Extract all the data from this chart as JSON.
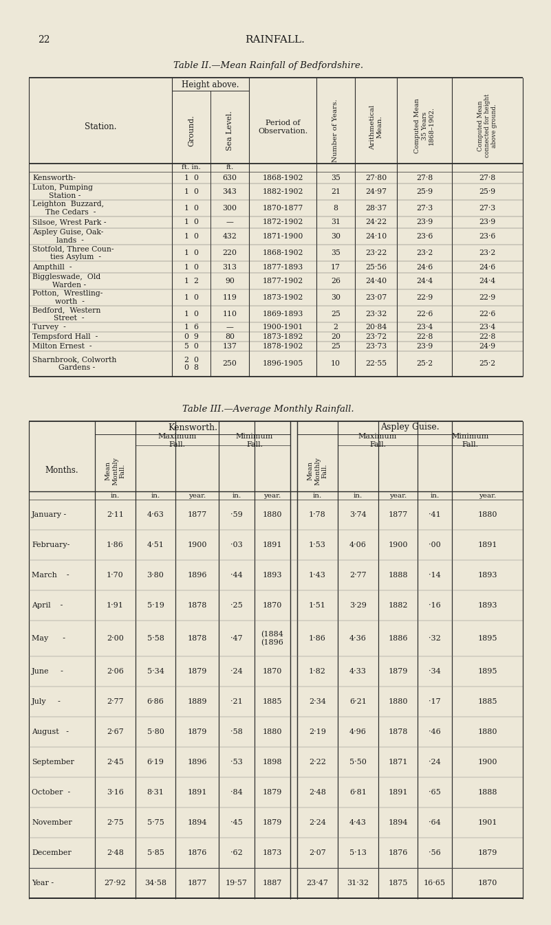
{
  "page_number": "22",
  "page_header": "RAINFALL.",
  "bg_color": "#ede8d8",
  "text_color": "#1a1a1a",
  "table2_title": "Table II.—Mean Rainfall of Bedfordshire.",
  "table3_title": "Table III.—Average Monthly Rainfall.",
  "station_names": [
    "Kensworth-",
    "Luton, Pumping\n  Station -",
    "Leighton  Buzzard,\n  The Cedars  -",
    "Silsoe, Wrest Park -",
    "Aspley Guise, Oak-\n  lands  -",
    "Stotfold, Three Coun-\n  ties Asylum  -",
    "Ampthill  -",
    "Biggleswade,  Old\n  Warden -",
    "Potton,  Wrestling-\n  worth  -",
    "Bedford,  Western\n  Street  -",
    "Turvey  -",
    "Tempsford Hall  -",
    "Milton Ernest  -",
    "Sharnbrook, Colworth\n  Gardens -"
  ],
  "ground_vals": [
    "1  0",
    "1  0",
    "1  0",
    "1  0",
    "1  0",
    "1  0",
    "1  0",
    "1  2",
    "1  0",
    "1  0",
    "1  6",
    "0  9",
    "5  0",
    "2  0\n0  8"
  ],
  "sea_vals": [
    "630",
    "343",
    "300",
    "—",
    "432",
    "220",
    "313",
    "90",
    "119",
    "110",
    "—",
    "80",
    "137",
    "250"
  ],
  "period_vals": [
    "1868-1902",
    "1882-1902",
    "1870-1877",
    "1872-1902",
    "1871-1900",
    "1868-1902",
    "1877-1893",
    "1877-1902",
    "1873-1902",
    "1869-1893",
    "1900-1901",
    "1873-1892",
    "1878-1902",
    "1896-1905"
  ],
  "num_vals": [
    "35",
    "21",
    "8",
    "31",
    "30",
    "35",
    "17",
    "26",
    "30",
    "25",
    "2",
    "20",
    "25",
    "10"
  ],
  "arith_vals": [
    "27·80",
    "24·97",
    "28·37",
    "24·22",
    "24·10",
    "23·22",
    "25·56",
    "24·40",
    "23·07",
    "23·32",
    "20·84",
    "23·72",
    "23·73",
    "22·55"
  ],
  "comp_vals": [
    "27·8",
    "25·9",
    "27·3",
    "23·9",
    "23·6",
    "23·2",
    "24·6",
    "24·4",
    "22·9",
    "22·6",
    "23·4",
    "22·8",
    "23·9",
    "25·2"
  ],
  "conn_vals": [
    "27·8",
    "25·9",
    "27·3",
    "23·9",
    "23·6",
    "23·2",
    "24·6",
    "24·4",
    "22·9",
    "22·6",
    "23·4",
    "22·8",
    "24·9",
    "25·2"
  ],
  "months": [
    "January -",
    "February-",
    "March    -",
    "April    -",
    "May      -",
    "June     -",
    "July     -",
    "August   -",
    "September",
    "October  -",
    "November",
    "December",
    "Year -"
  ],
  "kens_mean": [
    "2·11",
    "1·86",
    "1·70",
    "1·91",
    "2·00",
    "2·06",
    "2·77",
    "2·67",
    "2·45",
    "3·16",
    "2·75",
    "2·48",
    "27·92"
  ],
  "kens_maxf": [
    "4·63",
    "4·51",
    "3·80",
    "5·19",
    "5·58",
    "5·34",
    "6·86",
    "5·80",
    "6·19",
    "8·31",
    "5·75",
    "5·85",
    "34·58"
  ],
  "kens_maxy": [
    "1877",
    "1900",
    "1896",
    "1878",
    "1878",
    "1879",
    "1889",
    "1879",
    "1896",
    "1891",
    "1894",
    "1876",
    "1877"
  ],
  "kens_minf": [
    "·59",
    "·03",
    "·44",
    "·25",
    "·47",
    "·24",
    "·21",
    "·58",
    "·53",
    "·84",
    "·45",
    "·62",
    "19·57"
  ],
  "kens_miny": [
    "1880",
    "1891",
    "1893",
    "1870",
    "(1884\n(1896",
    "1870",
    "1885",
    "1880",
    "1898",
    "1879",
    "1879",
    "1873",
    "1887"
  ],
  "asp_mean": [
    "1·78",
    "1·53",
    "1·43",
    "1·51",
    "1·86",
    "1·82",
    "2·34",
    "2·19",
    "2·22",
    "2·48",
    "2·24",
    "2·07",
    "23·47"
  ],
  "asp_maxf": [
    "3·74",
    "4·06",
    "2·77",
    "3·29",
    "4·36",
    "4·33",
    "6·21",
    "4·96",
    "5·50",
    "6·81",
    "4·43",
    "5·13",
    "31·32"
  ],
  "asp_maxy": [
    "1877",
    "1900",
    "1888",
    "1882",
    "1886",
    "1879",
    "1880",
    "1878",
    "1871",
    "1891",
    "1894",
    "1876",
    "1875"
  ],
  "asp_minf": [
    "·41",
    "·00",
    "·14",
    "·16",
    "·32",
    "·34",
    "·17",
    "·46",
    "·24",
    "·65",
    "·64",
    "·56",
    "16·65"
  ],
  "asp_miny": [
    "1880",
    "1891",
    "1893",
    "1893",
    "1895",
    "1895",
    "1885",
    "1880",
    "1900",
    "1888",
    "1901",
    "1879",
    "1870"
  ]
}
